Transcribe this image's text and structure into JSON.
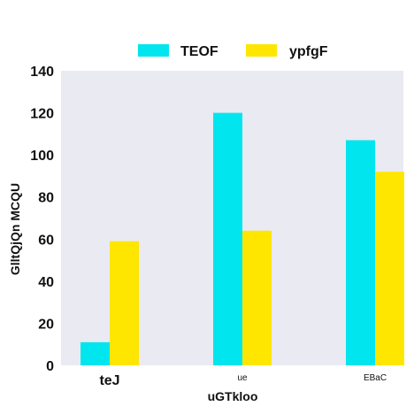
{
  "chart_data": {
    "type": "bar",
    "categories": [
      "teJ",
      "ue",
      "EBaC"
    ],
    "series": [
      {
        "name": "TEOF",
        "values": [
          11,
          120,
          107
        ],
        "color": "#00E5EE"
      },
      {
        "name": "ypfgF",
        "values": [
          59,
          64,
          92
        ],
        "color": "#FFE600"
      }
    ],
    "xlabel": "uGTkloo",
    "ylabel": "GlltQjQn MCQU",
    "ylim": [
      0,
      140
    ],
    "yticks": [
      0,
      20,
      40,
      60,
      80,
      100,
      120,
      140
    ],
    "grid": false,
    "legend_position": "top-center",
    "plot_background": "#EAEAF2"
  }
}
